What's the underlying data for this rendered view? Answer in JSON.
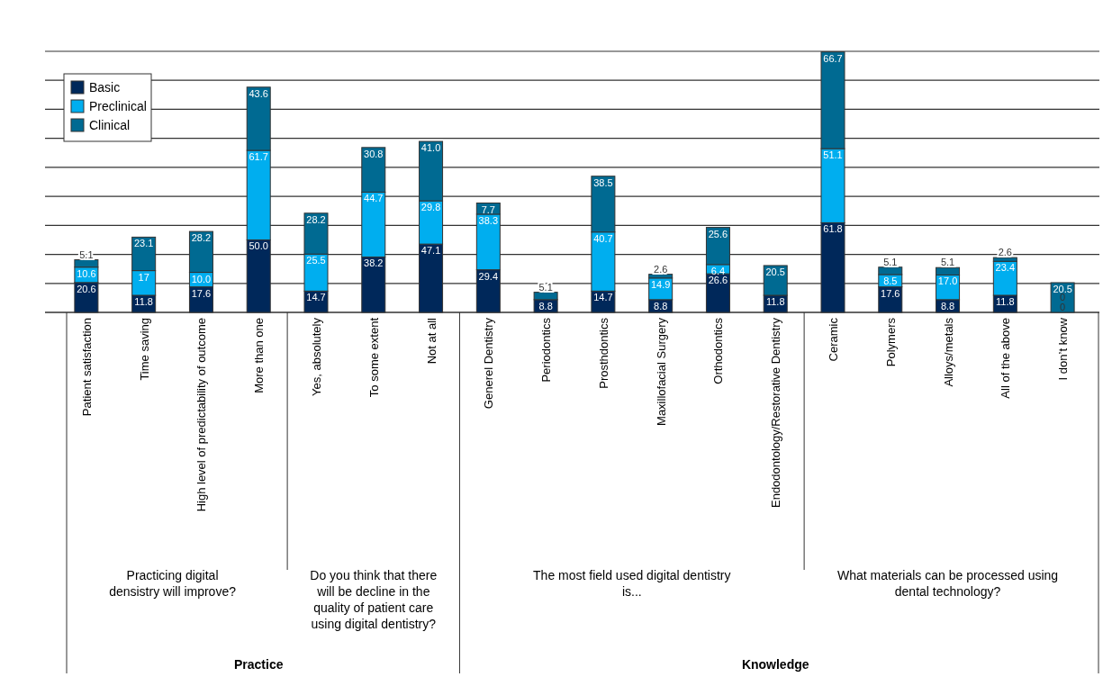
{
  "chart_data": {
    "type": "bar",
    "stacked": true,
    "categories": [
      "Patient satisfaction",
      "Time saving",
      "High level of predictability of outcome",
      "More than one",
      "Yes, absolutely",
      "To some extent",
      "Not at all",
      "Generel Dentistry",
      "Periodontics",
      "Prosthdontics",
      "Maxillofacial Surgery",
      "Orthodontics",
      "Endodontology/Restorative Dentistry",
      "Ceramic",
      "Polymers",
      "Alloys/metals",
      "All of the above",
      "I don’t know"
    ],
    "series": [
      {
        "name": "Basic",
        "color": "#00285a",
        "values": [
          20.6,
          11.8,
          17.6,
          50.0,
          14.7,
          38.2,
          47.1,
          29.4,
          8.8,
          14.7,
          8.8,
          26.6,
          11.8,
          61.8,
          17.6,
          8.8,
          11.8,
          0
        ],
        "value_labels": [
          "20.6",
          "11.8",
          "17.6",
          "50.0",
          "14.7",
          "38.2",
          "47.1",
          "29.4",
          "8.8",
          "14.7",
          "8.8",
          "26.6",
          "11.8",
          "61.8",
          "17.6",
          "8.8",
          "11.8",
          "0"
        ]
      },
      {
        "name": "Preclinical",
        "color": "#00aeef",
        "values": [
          10.6,
          17,
          10.0,
          61.7,
          25.5,
          44.7,
          29.8,
          38.3,
          null,
          40.7,
          14.9,
          6.4,
          null,
          51.1,
          8.5,
          17.0,
          23.4,
          0
        ],
        "value_labels": [
          "10.6",
          "17",
          "10.0",
          "61.7",
          "25.5",
          "44.7",
          "29.8",
          "38.3",
          null,
          "40.7",
          "14.9",
          "6.4",
          null,
          "51.1",
          "8.5",
          "17.0",
          "23.4",
          "0"
        ]
      },
      {
        "name": "Clinical",
        "color": "#006a92",
        "values": [
          5.1,
          23.1,
          28.2,
          43.6,
          28.2,
          30.8,
          41.0,
          7.7,
          5.1,
          38.5,
          2.6,
          25.6,
          20.5,
          66.7,
          5.1,
          5.1,
          2.6,
          20.5
        ],
        "value_labels": [
          "5.1",
          "23.1",
          "28.2",
          "43.6",
          "28.2",
          "30.8",
          "41.0",
          "7.7",
          "5.1",
          "38.5",
          "2.6",
          "25.6",
          "20.5",
          "66.7",
          "5.1",
          "5.1",
          "2.6",
          "20.5"
        ]
      }
    ],
    "ylim": [
      0,
      180
    ],
    "yticks": [
      {
        "value": 0,
        "label": null
      },
      {
        "value": 20,
        "label": null
      },
      {
        "value": 40,
        "label": null
      },
      {
        "value": 60,
        "label": null
      },
      {
        "value": 80,
        "label": null
      },
      {
        "value": 100,
        "label": null
      },
      {
        "value": 120,
        "label": null
      },
      {
        "value": 140,
        "label": null
      },
      {
        "value": 160,
        "label": null
      },
      {
        "value": 180,
        "label": null
      }
    ],
    "tick_labels": "x",
    "grid": "y",
    "legend": "top left",
    "annotations": [
      "Practicing digital densistry will improve?",
      "Do you think that there will be decline in the quality of patient care using digital dentistry?",
      "The most field used digital dentistry is...",
      "What materials can be processed using dental technology?",
      "Practice",
      "Knowledge"
    ]
  }
}
